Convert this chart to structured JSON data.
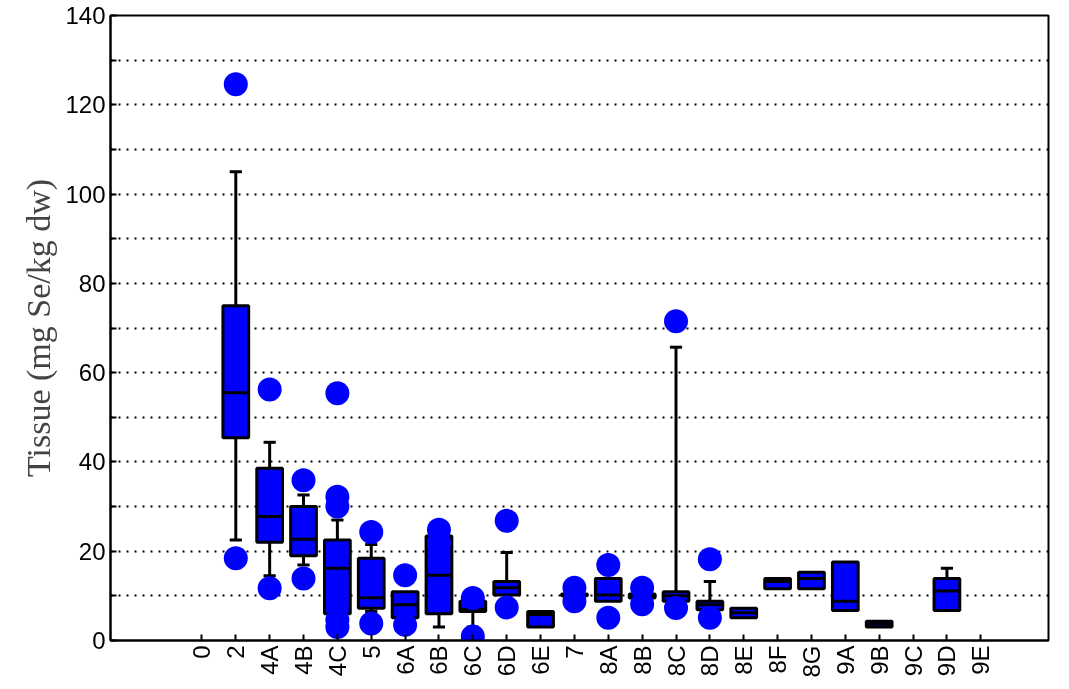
{
  "chart_data": {
    "type": "box",
    "ylabel": "Tissue (mg Se/kg dw)",
    "categories": [
      "0",
      "2",
      "4A",
      "4B",
      "4C",
      "5",
      "6A",
      "6B",
      "6C",
      "6D",
      "6E",
      "7",
      "8A",
      "8B",
      "8C",
      "8D",
      "8E",
      "8F",
      "8G",
      "9A",
      "9B",
      "9C",
      "9D",
      "9E"
    ],
    "color": "#0000ff",
    "boxes": [
      null,
      {
        "low": 22.5,
        "q1": 45.4,
        "median": 55.5,
        "q3": 75,
        "high": 105,
        "outliers": [
          124.6,
          18.4
        ]
      },
      {
        "low": 14.5,
        "q1": 22,
        "median": 27.8,
        "q3": 38.6,
        "high": 44.4,
        "outliers": [
          56.2,
          11.7
        ]
      },
      {
        "low": 16.9,
        "q1": 19,
        "median": 22.7,
        "q3": 30,
        "high": 32.6,
        "outliers": [
          35.9,
          13.9
        ]
      },
      {
        "low": 5,
        "q1": 6,
        "median": 16.2,
        "q3": 22.5,
        "high": 27,
        "outliers": [
          55.4,
          32.2,
          30,
          4.6,
          3
        ]
      },
      {
        "low": 6.5,
        "q1": 7.2,
        "median": 9.6,
        "q3": 18.4,
        "high": 21.5,
        "outliers": [
          24.3,
          3.8
        ]
      },
      {
        "low": 5.1,
        "q1": 5.1,
        "median": 8,
        "q3": 10.9,
        "high": 10.9,
        "outliers": [
          14.6,
          3.5
        ]
      },
      {
        "low": 3,
        "q1": 6,
        "median": 14.6,
        "q3": 23.4,
        "high": 23.4,
        "outliers": [
          24.8,
          21.8
        ]
      },
      {
        "low": 3,
        "q1": 6.5,
        "median": 7,
        "q3": 8.8,
        "high": 8.8,
        "outliers": [
          9.5,
          0.9
        ]
      },
      {
        "low": 10.2,
        "q1": 10.2,
        "median": 11.8,
        "q3": 13.2,
        "high": 19.7,
        "outliers": [
          26.8,
          7.4
        ]
      },
      {
        "low": 3,
        "q1": 3,
        "median": 5.8,
        "q3": 6.5,
        "high": 6.5
      },
      {
        "low": 10,
        "q1": 10,
        "median": 10.2,
        "q3": 10.4,
        "high": 10.4,
        "outliers": [
          11.8,
          8.8
        ]
      },
      {
        "low": 8.8,
        "q1": 8.8,
        "median": 10.2,
        "q3": 13.9,
        "high": 13.9,
        "outliers": [
          16.9,
          5.1
        ]
      },
      {
        "low": 9.5,
        "q1": 9.5,
        "median": 10,
        "q3": 10.4,
        "high": 10.4,
        "outliers": [
          11.8,
          8.1
        ]
      },
      {
        "low": 8.8,
        "q1": 8.8,
        "median": 10,
        "q3": 10.9,
        "high": 65.7,
        "outliers": [
          71.5,
          7.3
        ]
      },
      {
        "low": 6.9,
        "q1": 6.9,
        "median": 8,
        "q3": 8.8,
        "high": 13.2,
        "outliers": [
          18.2,
          5.1
        ]
      },
      {
        "low": 5.1,
        "q1": 5.1,
        "median": 6.2,
        "q3": 7.2,
        "high": 7.2
      },
      {
        "low": 11.6,
        "q1": 11.6,
        "median": 13.2,
        "q3": 13.9,
        "high": 13.9
      },
      {
        "low": 11.6,
        "q1": 11.6,
        "median": 13.9,
        "q3": 15.3,
        "high": 15.3
      },
      {
        "low": 6.7,
        "q1": 6.7,
        "median": 8.8,
        "q3": 17.6,
        "high": 17.6
      },
      {
        "low": 3,
        "q1": 3,
        "median": 3.7,
        "q3": 4.3,
        "high": 4.3
      },
      null,
      {
        "low": 6.7,
        "q1": 6.7,
        "median": 11.1,
        "q3": 13.9,
        "high": 16.2
      },
      null
    ],
    "ylim": [
      0,
      140
    ],
    "yticks": [
      0,
      {
        "value": 10,
        "label": null
      },
      20,
      {
        "value": 30,
        "label": null
      },
      40,
      {
        "value": 50,
        "label": null
      },
      60,
      {
        "value": 70,
        "label": null
      },
      80,
      {
        "value": 90,
        "label": null
      },
      100,
      {
        "value": 110,
        "label": null
      },
      120,
      {
        "value": 130,
        "label": null
      },
      140
    ],
    "grid": "y"
  }
}
